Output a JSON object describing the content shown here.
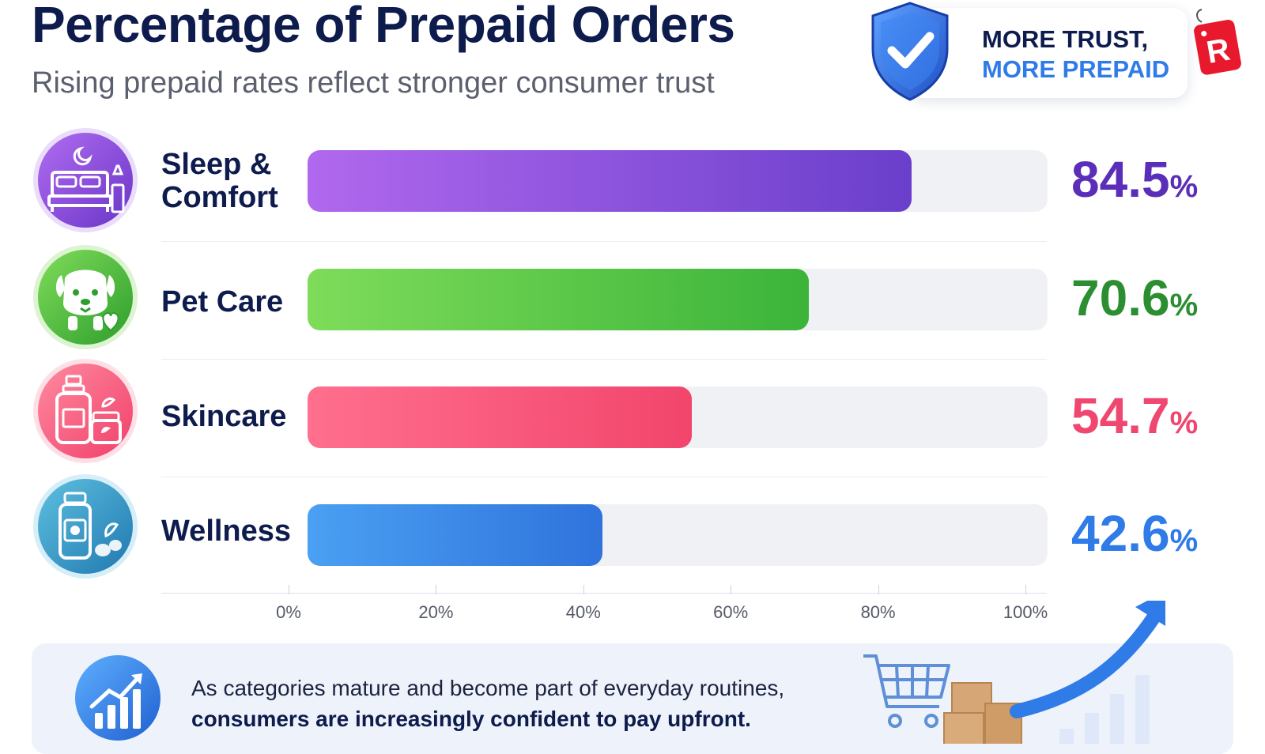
{
  "header": {
    "title": "Percentage of Prepaid Orders",
    "subtitle": "Rising prepaid rates reflect stronger consumer trust"
  },
  "trust_badge": {
    "line1": "MORE TRUST,",
    "line2": "MORE PREPAID",
    "logo_letter": "R"
  },
  "chart_data": {
    "type": "bar",
    "orientation": "horizontal",
    "categories": [
      "Sleep & Comfort",
      "Pet Care",
      "Skincare",
      "Wellness"
    ],
    "values": [
      84.5,
      70.6,
      54.7,
      42.6
    ],
    "value_labels": [
      "84.5",
      "70.6",
      "54.7",
      "42.6"
    ],
    "value_suffix": "%",
    "xlim": [
      0,
      100
    ],
    "x_ticks": [
      "0%",
      "20%",
      "40%",
      "60%",
      "80%",
      "100%"
    ],
    "category_icons": [
      "bed-icon",
      "dog-icon",
      "skincare-bottle-icon",
      "wellness-bottle-icon"
    ],
    "colors": [
      "#8a4fe0",
      "#45c443",
      "#f5506f",
      "#3a8ae8"
    ],
    "value_colors": [
      "#5a2eb8",
      "#2b8f32",
      "#ef476f",
      "#2f7be8"
    ],
    "grid": false
  },
  "footer": {
    "line1": "As categories mature and become part of everyday routines,",
    "line2": "consumers are increasingly confident to pay upfront."
  },
  "icons": {
    "shield": "shield-check-icon",
    "footer": "growth-chart-icon",
    "cart": "shopping-cart-icon",
    "boxes": "boxes-icon",
    "arrow": "trend-arrow-icon"
  }
}
